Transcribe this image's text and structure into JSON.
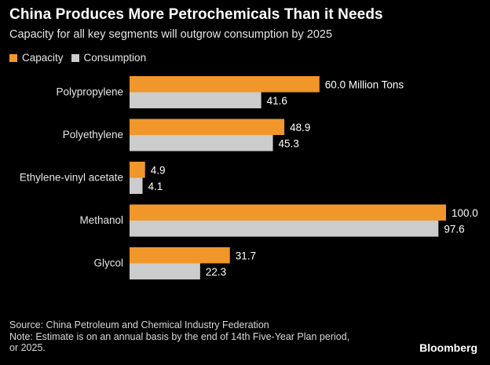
{
  "title": "China Produces More Petrochemicals Than it Needs",
  "subtitle": "Capacity for all key segments will outgrow consumption by 2025",
  "legend": {
    "capacity": "Capacity",
    "consumption": "Consumption"
  },
  "colors": {
    "capacity": "#f0962b",
    "consumption": "#cccccc",
    "background": "#000000"
  },
  "chart_data": {
    "type": "bar",
    "orientation": "horizontal",
    "title": "China Produces More Petrochemicals Than it Needs",
    "subtitle": "Capacity for all key segments will outgrow consumption by 2025",
    "categories": [
      "Polypropylene",
      "Polyethylene",
      "Ethylene-vinyl acetate",
      "Methanol",
      "Glycol"
    ],
    "series": [
      {
        "name": "Capacity",
        "values": [
          60.0,
          48.9,
          4.9,
          100.0,
          31.7
        ],
        "labels": [
          "60.0 Million Tons",
          "48.9",
          "4.9",
          "100.0",
          "31.7"
        ]
      },
      {
        "name": "Consumption",
        "values": [
          41.6,
          45.3,
          4.1,
          97.6,
          22.3
        ],
        "labels": [
          "41.6",
          "45.3",
          "4.1",
          "97.6",
          "22.3"
        ]
      }
    ],
    "xlim": [
      0,
      100
    ],
    "unit": "Million Tons",
    "legend_position": "top-left",
    "grid": false
  },
  "footer": {
    "source": "Source: China Petroleum and Chemical Industry Federation",
    "note_line1": "Note: Estimate is on an annual basis by the end of 14th Five-Year Plan period,",
    "note_line2": "or 2025."
  },
  "brand": "Bloomberg"
}
